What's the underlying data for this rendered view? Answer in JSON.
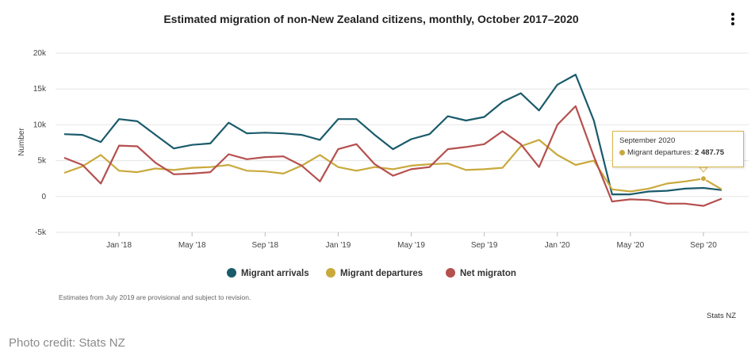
{
  "chart_data": {
    "type": "line",
    "title": "Estimated migration of non-New Zealand citizens, monthly, October 2017–2020",
    "ylabel": "Number",
    "xlabel": "",
    "ylim": [
      -5000,
      20000
    ],
    "yticks": [
      -5000,
      0,
      5000,
      10000,
      15000,
      20000
    ],
    "ytick_labels": [
      "-5k",
      "0",
      "5k",
      "10k",
      "15k",
      "20k"
    ],
    "x": [
      "Oct '17",
      "Nov '17",
      "Dec '17",
      "Jan '18",
      "Feb '18",
      "Mar '18",
      "Apr '18",
      "May '18",
      "Jun '18",
      "Jul '18",
      "Aug '18",
      "Sep '18",
      "Oct '18",
      "Nov '18",
      "Dec '18",
      "Jan '19",
      "Feb '19",
      "Mar '19",
      "Apr '19",
      "May '19",
      "Jun '19",
      "Jul '19",
      "Aug '19",
      "Sep '19",
      "Oct '19",
      "Nov '19",
      "Dec '19",
      "Jan '20",
      "Feb '20",
      "Mar '20",
      "Apr '20",
      "May '20",
      "Jun '20",
      "Jul '20",
      "Aug '20",
      "Sep '20",
      "Oct '20"
    ],
    "xtick_labels": [
      "Jan '18",
      "May '18",
      "Sep '18",
      "Jan '19",
      "May '19",
      "Sep '19",
      "Jan '20",
      "May '20",
      "Sep '20"
    ],
    "xtick_indices": [
      3,
      7,
      11,
      15,
      19,
      23,
      27,
      31,
      35
    ],
    "series": [
      {
        "name": "Migrant arrivals",
        "color": "#1a5b6b",
        "values": [
          8700,
          8600,
          7600,
          10800,
          10500,
          8600,
          6700,
          7200,
          7400,
          10300,
          8800,
          8900,
          8800,
          8600,
          7900,
          10800,
          10800,
          8600,
          6600,
          8000,
          8700,
          11200,
          10600,
          11100,
          13200,
          14400,
          12000,
          15600,
          17000,
          10600,
          300,
          300,
          700,
          800,
          1100,
          1200,
          900
        ]
      },
      {
        "name": "Migrant departures",
        "color": "#c9a93c",
        "values": [
          3300,
          4200,
          5800,
          3600,
          3400,
          3900,
          3700,
          4000,
          4100,
          4400,
          3600,
          3500,
          3200,
          4300,
          5800,
          4100,
          3600,
          4100,
          3800,
          4300,
          4500,
          4600,
          3700,
          3800,
          4000,
          7000,
          7900,
          5800,
          4400,
          5000,
          1000,
          700,
          1100,
          1800,
          2100,
          2487.75,
          1000
        ]
      },
      {
        "name": "Net migraton",
        "color": "#b5504f",
        "values": [
          5400,
          4400,
          1800,
          7100,
          7000,
          4700,
          3100,
          3200,
          3400,
          5900,
          5200,
          5500,
          5600,
          4300,
          2100,
          6600,
          7300,
          4500,
          2900,
          3800,
          4100,
          6600,
          6900,
          7300,
          9100,
          7300,
          4100,
          10000,
          12600,
          5600,
          -700,
          -400,
          -500,
          -1000,
          -1000,
          -1300,
          -300
        ]
      }
    ],
    "legend_position": "bottom",
    "grid": true
  },
  "tooltip": {
    "title": "September 2020",
    "label": "Migrant departures:",
    "value": "2 487.75",
    "color": "#c9a93c",
    "series_index": 1,
    "point_index": 35
  },
  "note": "Estimates from July 2019 are provisional and subject to revision.",
  "source": "Stats NZ",
  "photo_credit": "Photo credit: Stats NZ",
  "menu_icon": "vertical-dots-icon"
}
